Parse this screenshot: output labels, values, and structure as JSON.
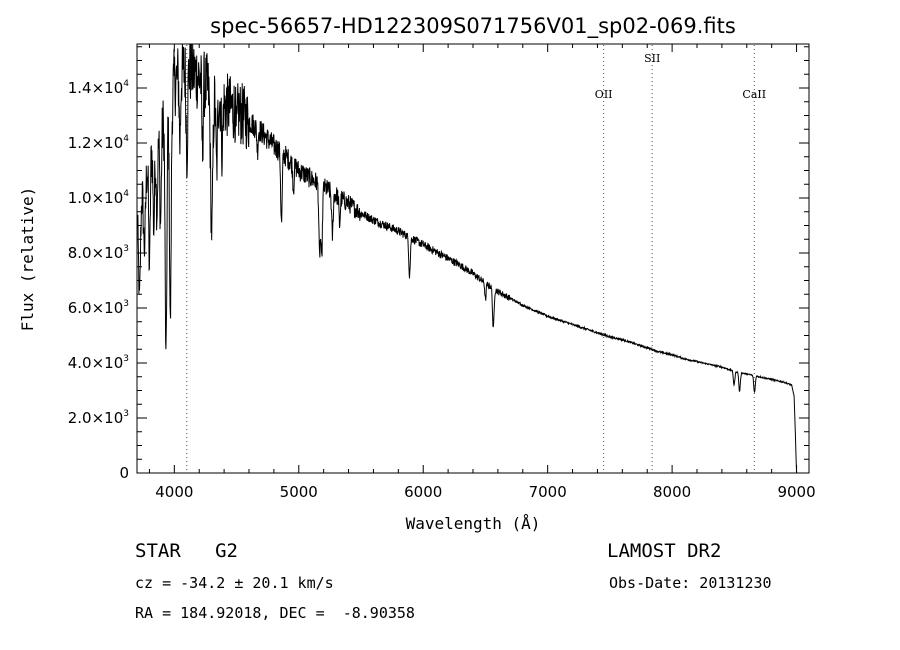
{
  "chart_data": {
    "type": "line",
    "title": "spec-56657-HD122309S071756V01_sp02-069.fits",
    "xlabel": "Wavelength (Å)",
    "ylabel": "Flux (relative)",
    "xlim": [
      3700,
      9100
    ],
    "ylim": [
      0,
      15600
    ],
    "x_ticks": [
      {
        "value": 4000,
        "label": "4000"
      },
      {
        "value": 5000,
        "label": "5000"
      },
      {
        "value": 6000,
        "label": "6000"
      },
      {
        "value": 7000,
        "label": "7000"
      },
      {
        "value": 8000,
        "label": "8000"
      },
      {
        "value": 9000,
        "label": "9000"
      }
    ],
    "y_ticks": [
      {
        "value": 0,
        "mant": "0",
        "exp": ""
      },
      {
        "value": 2000,
        "mant": "2.0×10",
        "exp": "3"
      },
      {
        "value": 4000,
        "mant": "4.0×10",
        "exp": "3"
      },
      {
        "value": 6000,
        "mant": "6.0×10",
        "exp": "3"
      },
      {
        "value": 8000,
        "mant": "8.0×10",
        "exp": "3"
      },
      {
        "value": 10000,
        "mant": "1.0×10",
        "exp": "4"
      },
      {
        "value": 12000,
        "mant": "1.2×10",
        "exp": "4"
      },
      {
        "value": 14000,
        "mant": "1.4×10",
        "exp": "4"
      }
    ],
    "continuum": [
      [
        3700,
        9500
      ],
      [
        3800,
        11500
      ],
      [
        3900,
        12500
      ],
      [
        4000,
        14200
      ],
      [
        4100,
        14800
      ],
      [
        4200,
        14400
      ],
      [
        4300,
        13800
      ],
      [
        4400,
        13400
      ],
      [
        4500,
        13200
      ],
      [
        4600,
        12800
      ],
      [
        4700,
        12400
      ],
      [
        4800,
        11900
      ],
      [
        4900,
        11500
      ],
      [
        5000,
        11000
      ],
      [
        5100,
        10700
      ],
      [
        5200,
        10400
      ],
      [
        5300,
        10100
      ],
      [
        5400,
        9800
      ],
      [
        5500,
        9450
      ],
      [
        5600,
        9200
      ],
      [
        5700,
        9000
      ],
      [
        5800,
        8800
      ],
      [
        5900,
        8550
      ],
      [
        6000,
        8300
      ],
      [
        6100,
        8050
      ],
      [
        6200,
        7800
      ],
      [
        6300,
        7550
      ],
      [
        6400,
        7250
      ],
      [
        6500,
        6900
      ],
      [
        6600,
        6600
      ],
      [
        6700,
        6350
      ],
      [
        6800,
        6100
      ],
      [
        6900,
        5900
      ],
      [
        7000,
        5700
      ],
      [
        7100,
        5550
      ],
      [
        7200,
        5400
      ],
      [
        7300,
        5250
      ],
      [
        7400,
        5100
      ],
      [
        7500,
        4950
      ],
      [
        7600,
        4850
      ],
      [
        7700,
        4700
      ],
      [
        7800,
        4550
      ],
      [
        7900,
        4400
      ],
      [
        8000,
        4300
      ],
      [
        8100,
        4150
      ],
      [
        8200,
        4050
      ],
      [
        8300,
        3950
      ],
      [
        8400,
        3850
      ],
      [
        8500,
        3700
      ],
      [
        8600,
        3600
      ],
      [
        8700,
        3500
      ],
      [
        8800,
        3400
      ],
      [
        8900,
        3300
      ],
      [
        8960,
        3200
      ],
      [
        8980,
        2800
      ],
      [
        8990,
        1500
      ],
      [
        9000,
        0
      ]
    ],
    "absorption_features": [
      {
        "x": 3720,
        "depth": 3500,
        "width": 8
      },
      {
        "x": 3760,
        "depth": 2500,
        "width": 8
      },
      {
        "x": 3800,
        "depth": 4000,
        "width": 6
      },
      {
        "x": 3835,
        "depth": 3000,
        "width": 6
      },
      {
        "x": 3860,
        "depth": 2600,
        "width": 6
      },
      {
        "x": 3889,
        "depth": 3300,
        "width": 6
      },
      {
        "x": 3933,
        "depth": 8800,
        "width": 7
      },
      {
        "x": 3968,
        "depth": 8200,
        "width": 7
      },
      {
        "x": 4045,
        "depth": 2500,
        "width": 5
      },
      {
        "x": 4101,
        "depth": 3300,
        "width": 6
      },
      {
        "x": 4226,
        "depth": 2500,
        "width": 5
      },
      {
        "x": 4300,
        "depth": 5000,
        "width": 9
      },
      {
        "x": 4340,
        "depth": 2600,
        "width": 6
      },
      {
        "x": 4384,
        "depth": 1800,
        "width": 5
      },
      {
        "x": 4500,
        "depth": 900,
        "width": 5
      },
      {
        "x": 4668,
        "depth": 800,
        "width": 5
      },
      {
        "x": 4861,
        "depth": 2600,
        "width": 6
      },
      {
        "x": 4957,
        "depth": 900,
        "width": 5
      },
      {
        "x": 5167,
        "depth": 2600,
        "width": 6
      },
      {
        "x": 5184,
        "depth": 2700,
        "width": 6
      },
      {
        "x": 5270,
        "depth": 1600,
        "width": 6
      },
      {
        "x": 5328,
        "depth": 1000,
        "width": 5
      },
      {
        "x": 5890,
        "depth": 1400,
        "width": 6
      },
      {
        "x": 6563,
        "depth": 1500,
        "width": 6
      },
      {
        "x": 6500,
        "depth": 600,
        "width": 5
      },
      {
        "x": 8498,
        "depth": 500,
        "width": 6
      },
      {
        "x": 8542,
        "depth": 700,
        "width": 6
      },
      {
        "x": 8662,
        "depth": 600,
        "width": 6
      }
    ],
    "line_markers": [
      {
        "x": 4100,
        "label": ""
      },
      {
        "x": 7450,
        "label": "OII"
      },
      {
        "x": 7840,
        "label": "SII"
      },
      {
        "x": 8660,
        "label": "CaII"
      }
    ]
  },
  "info": {
    "object_class": "STAR",
    "subclass": "G2",
    "survey": "LAMOST DR2",
    "redshift": "cz = -34.2 ± 20.1 km/s",
    "obs_date": "Obs-Date: 20131230",
    "coords": "RA = 184.92018, DEC =  -8.90358"
  }
}
